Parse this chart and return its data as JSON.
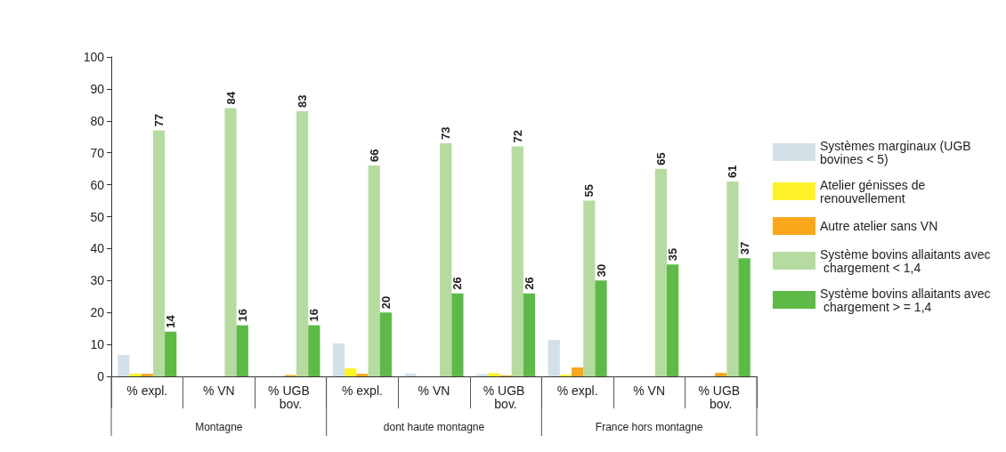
{
  "chart_data": {
    "type": "bar",
    "categories": [
      "% expl.",
      "% VN",
      "% UGB bov.",
      "% expl.",
      "% VN",
      "% UGB bov.",
      "% expl.",
      "% VN",
      "% UGB bov."
    ],
    "series": [
      {
        "name": "Systèmes marginaux (UGB bovines < 5)",
        "color": "#d3e0e8",
        "values": [
          6.7,
          null,
          null,
          10.3,
          0.9,
          0.7,
          11.4,
          null,
          null
        ]
      },
      {
        "name": "Atelier génisses de renouvellement",
        "color": "#fff22a",
        "values": [
          0.8,
          0,
          0,
          2.5,
          0,
          1.0,
          0.5,
          0,
          0
        ]
      },
      {
        "name": "Autre atelier sans VN",
        "color": "#f9a81c",
        "values": [
          0.8,
          0,
          0.4,
          0.8,
          0,
          0.3,
          2.8,
          0,
          1.1
        ]
      },
      {
        "name": "Système bovins allaitants avec chargement < 1,4",
        "color": "#b6dba0",
        "values": [
          77,
          84,
          83,
          66,
          73,
          72,
          55,
          65,
          61
        ],
        "value_labels": [
          "77",
          "84",
          "83",
          "66",
          "73",
          "72",
          "55",
          "65",
          "61"
        ]
      },
      {
        "name": "Système bovins allaitants avec chargement > = 1,4",
        "color": "#5dba47",
        "values": [
          14,
          16,
          16,
          20,
          26,
          26,
          30,
          35,
          37
        ],
        "value_labels": [
          "14",
          "16",
          "16",
          "20",
          "26",
          "26",
          "30",
          "35",
          "37"
        ]
      }
    ],
    "annotations": [
      "Montagne",
      "dont haute montagne",
      "France hors montagne"
    ],
    "ylim": [
      0,
      100
    ],
    "yticks": [
      0,
      10,
      20,
      30,
      40,
      50,
      60,
      70,
      80,
      90,
      100
    ],
    "grid": false,
    "legend": "right"
  }
}
